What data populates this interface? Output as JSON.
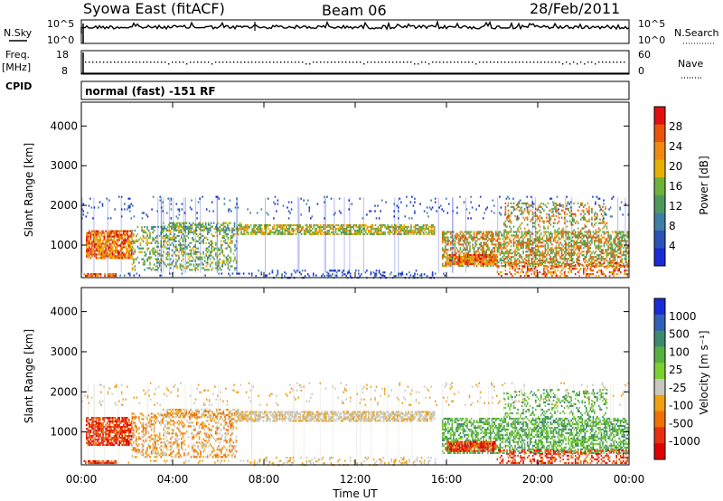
{
  "header": {
    "station": "Syowa East (fitACF)",
    "beam": "Beam 06",
    "date": "28/Feb/2011"
  },
  "strip_panels": {
    "nsky_label": "N.Sky",
    "nsky_ticks": [
      "10^5",
      "10^0"
    ],
    "nsearch_label": "N.Search",
    "nsearch_ticks": [
      "10^5",
      "10^0"
    ],
    "freq_label": "Freq.",
    "freq_unit": "[MHz]",
    "freq_ticks": [
      "18",
      "8"
    ],
    "nave_label": "Nave",
    "nave_ticks": [
      "60",
      "0"
    ],
    "cpid_label": "CPID",
    "cpid_value": "normal (fast) -151 RF"
  },
  "colors": {
    "power_scale": [
      "#1a2bd6",
      "#2a52b8",
      "#3e7fa8",
      "#4e9a5e",
      "#6fb23b",
      "#e8b000",
      "#f08a10",
      "#e8550a",
      "#e01010"
    ],
    "velocity_scale": [
      "#1a2bd6",
      "#3060b8",
      "#3e8a70",
      "#58b040",
      "#7cd030",
      "#c8c8c0",
      "#f0a010",
      "#f07000",
      "#e83010",
      "#e00000"
    ]
  },
  "chart_data": [
    {
      "type": "heatmap",
      "panel": "power",
      "ylabel": "Slant Range [km]",
      "ylim": [
        180,
        4600
      ],
      "y_ticks": [
        1000,
        2000,
        3000,
        4000
      ],
      "x_ticks": [
        "00:00",
        "04:00",
        "08:00",
        "12:00",
        "16:00",
        "20:00",
        "00:00"
      ],
      "colorbar_label": "Power [dB]",
      "colorbar_ticks": [
        "28",
        "24",
        "20",
        "16",
        "12",
        "8",
        "4"
      ],
      "colorbar_range": [
        0,
        30
      ]
    },
    {
      "type": "heatmap",
      "panel": "velocity",
      "ylabel": "Slant Range [km]",
      "ylim": [
        180,
        4600
      ],
      "y_ticks": [
        1000,
        2000,
        3000,
        4000
      ],
      "x_ticks": [
        "00:00",
        "04:00",
        "08:00",
        "12:00",
        "16:00",
        "20:00",
        "00:00"
      ],
      "xlabel": "Time UT",
      "colorbar_label": "Velocity [m s⁻¹]",
      "colorbar_ticks": [
        "1000",
        "500",
        "100",
        "25",
        "-25",
        "-100",
        "-500",
        "-1000"
      ]
    }
  ]
}
